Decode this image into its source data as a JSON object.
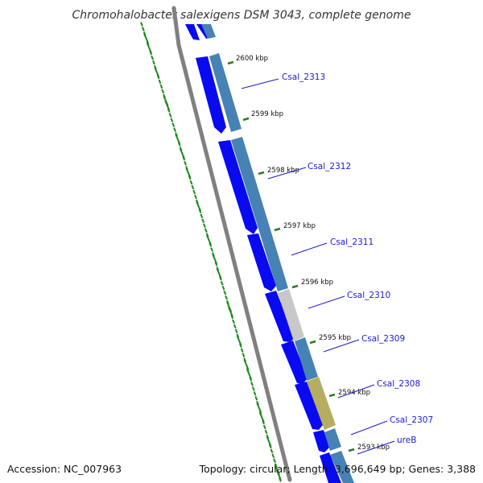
{
  "title": "Chromohalobacter salexigens DSM 3043, complete genome",
  "footer": {
    "accession": "Accession: NC_007963",
    "summary": "Topology: circular; Length: 3,696,649 bp; Genes: 3,388"
  },
  "colors": {
    "background": "#ffffff",
    "backbone": "#808080",
    "forward_gene": "#0a0af0",
    "cds_default": "#4682b4",
    "cds_gray": "#c8c8c8",
    "cds_khaki": "#b5ad62",
    "tick": "#2f7a1f",
    "gc_dots": "#1e8a1e",
    "gene_label": "#1a1ad6",
    "label_line": "#1a1ad6"
  },
  "kbp_ticks": [
    {
      "label": "2600 kbp"
    },
    {
      "label": "2599 kbp"
    },
    {
      "label": "2598 kbp"
    },
    {
      "label": "2597 kbp"
    },
    {
      "label": "2596 kbp"
    },
    {
      "label": "2595 kbp"
    },
    {
      "label": "2594 kbp"
    },
    {
      "label": "2593 kbp"
    }
  ],
  "genes": [
    {
      "label": "Csal_2313"
    },
    {
      "label": "Csal_2312"
    },
    {
      "label": "Csal_2311"
    },
    {
      "label": "Csal_2310"
    },
    {
      "label": "Csal_2309"
    },
    {
      "label": "Csal_2308"
    },
    {
      "label": "Csal_2307"
    },
    {
      "label": "ureB"
    }
  ]
}
